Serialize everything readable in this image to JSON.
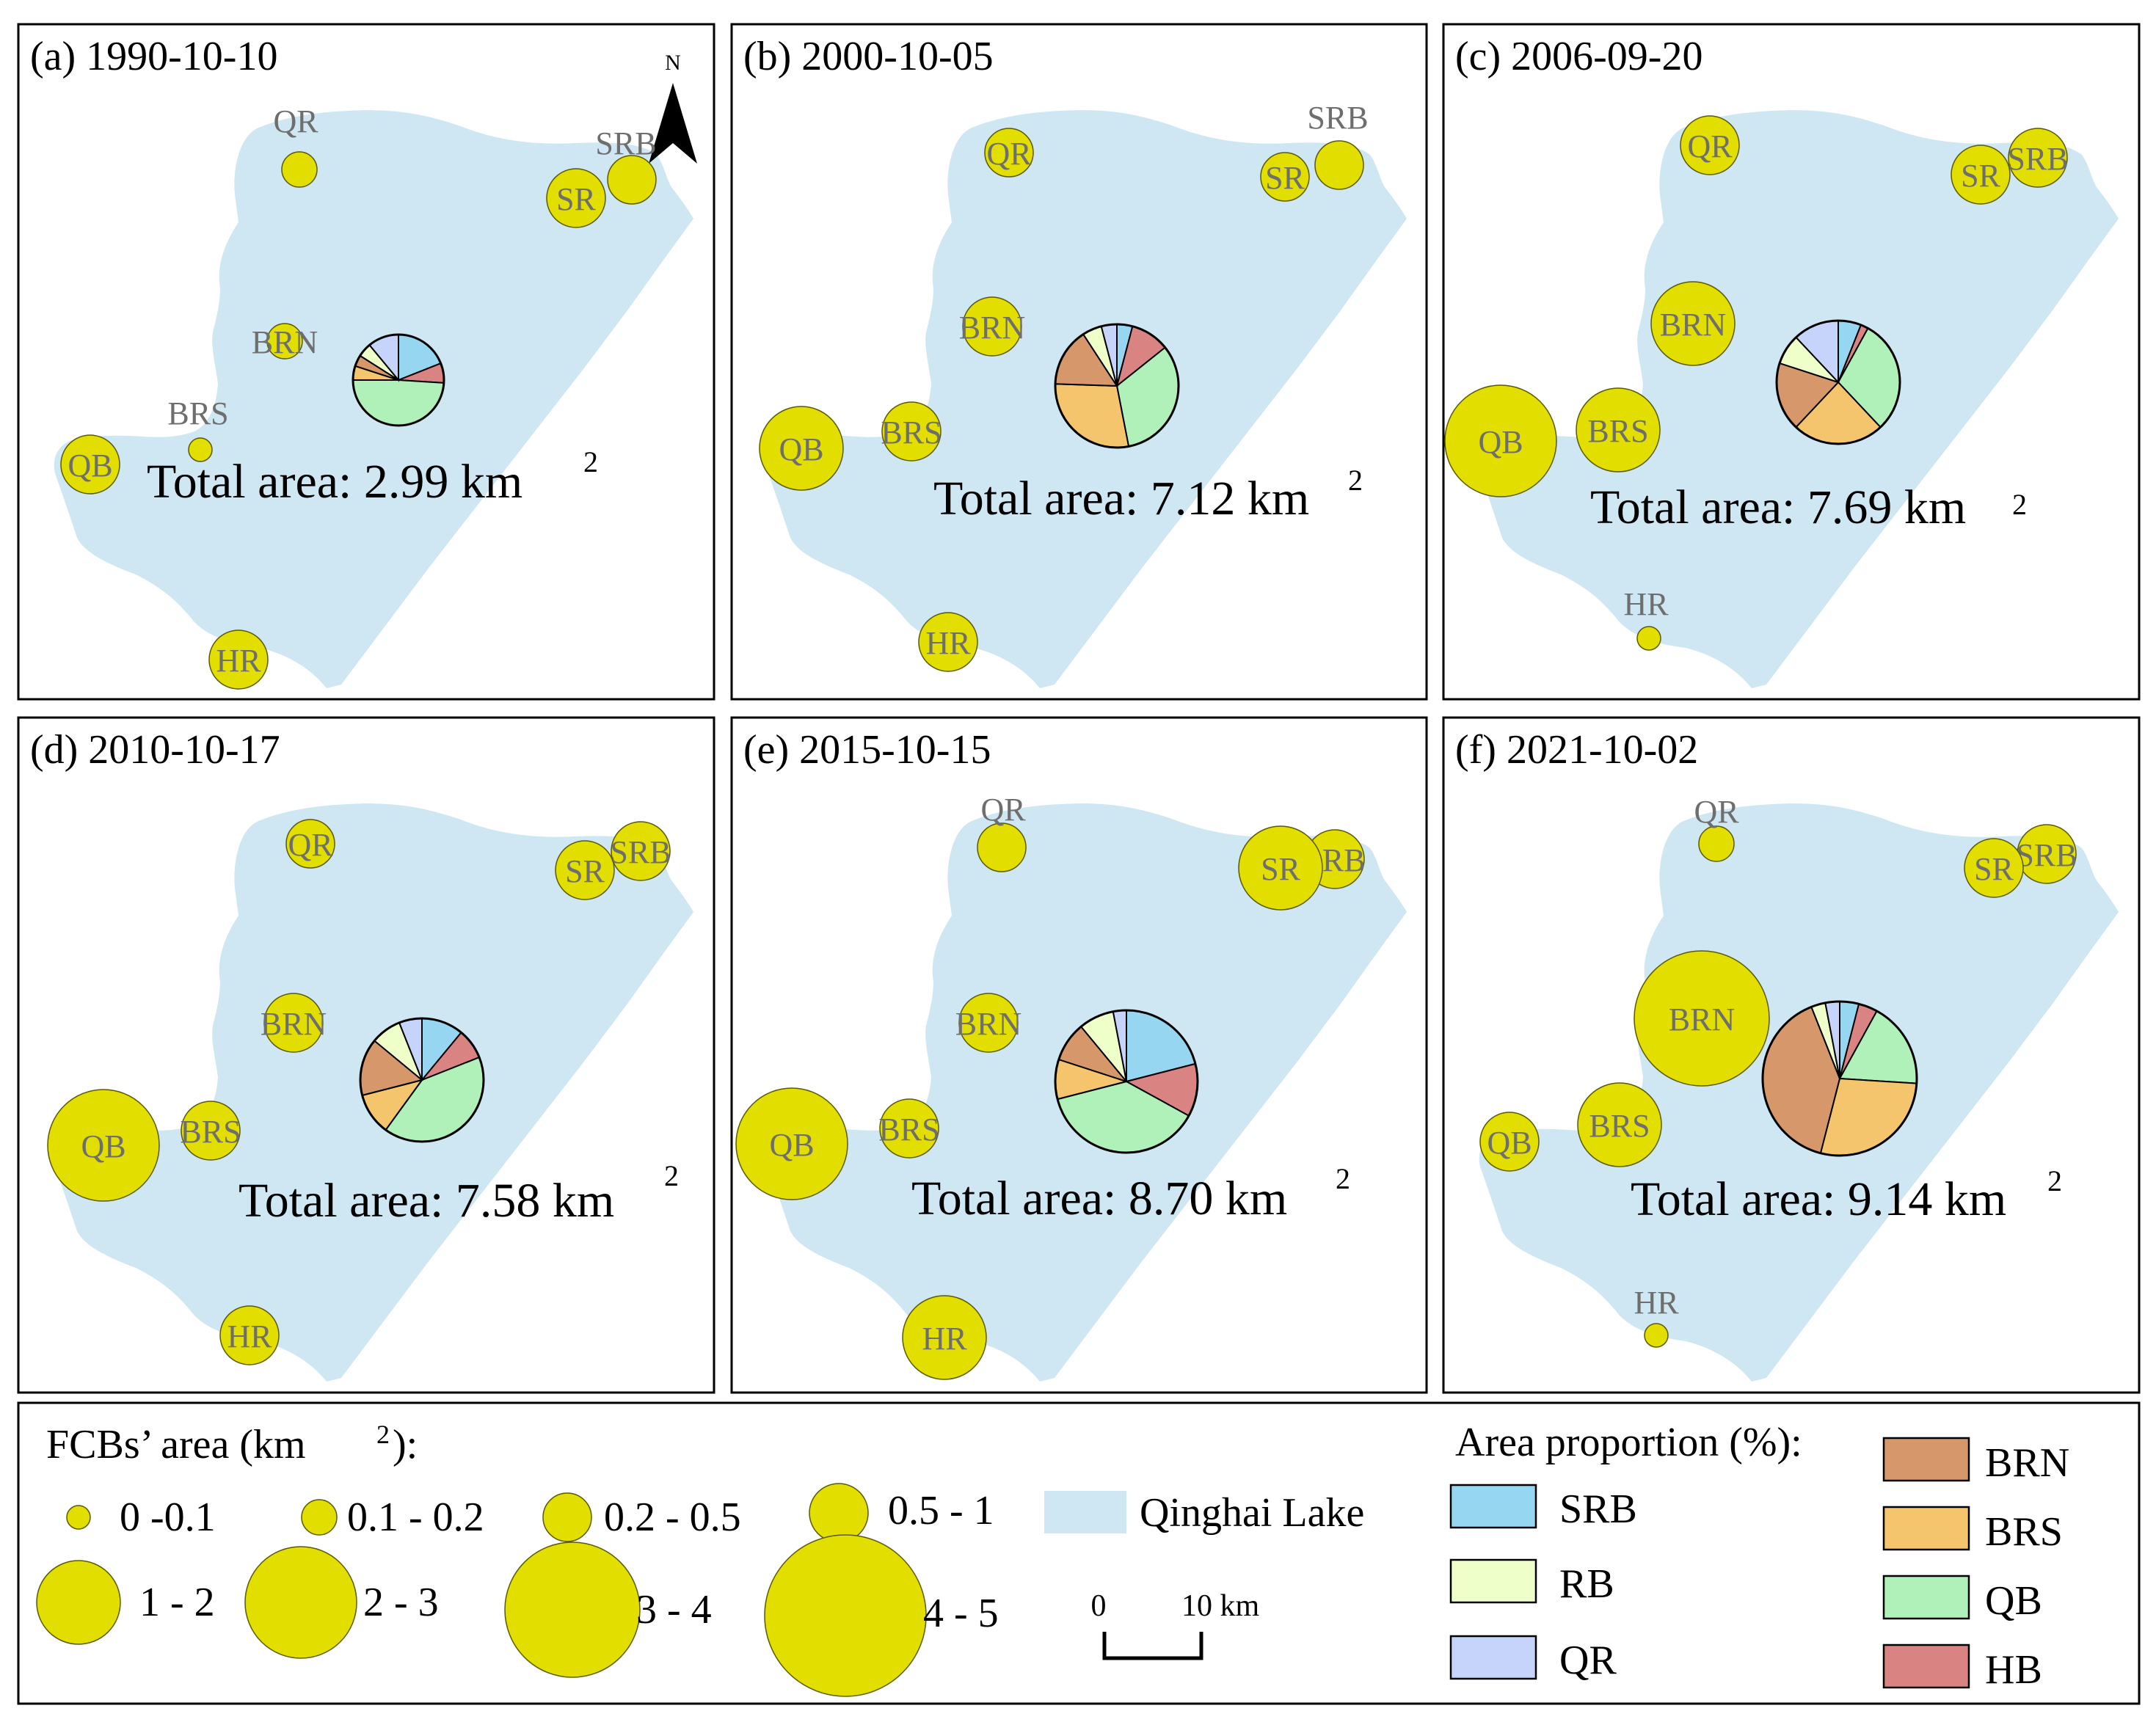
{
  "colors": {
    "lake": "#cfe6f3",
    "bubble": "#e1de00",
    "bubble_stroke": "#5a5a00",
    "label": "#6e6e6e",
    "SRB": "#96d6f1",
    "RB": "#efffc9",
    "QR": "#c6d3fb",
    "BRN": "#d6976b",
    "BRS": "#f5c56d",
    "QB": "#b0f0b9",
    "HB": "#d98383"
  },
  "panels": [
    {
      "id": "a",
      "title": "(a) 1990-10-10",
      "total_label": "Total area: 2.99 km",
      "sup": "2",
      "show_north": true,
      "north_label": "N",
      "bubbles": [
        {
          "label": "QR",
          "area_class": "0.1 - 0.2",
          "text_inside": false
        },
        {
          "label": "SRB",
          "area_class": "0.2 - 0.5",
          "text_inside": false
        },
        {
          "label": "SR",
          "area_class": "0.5 - 1",
          "text_inside": true
        },
        {
          "label": "BRN",
          "area_class": "0.1 - 0.2",
          "text_inside": true
        },
        {
          "label": "BRS",
          "area_class": "0 -0.1",
          "text_inside": false
        },
        {
          "label": "QB",
          "area_class": "0.5 - 1",
          "text_inside": true
        },
        {
          "label": "HR",
          "area_class": "0.5 - 1",
          "text_inside": true
        }
      ],
      "pie": [
        {
          "cls": "SRB",
          "pct": 19
        },
        {
          "cls": "HB",
          "pct": 7
        },
        {
          "cls": "QB",
          "pct": 49
        },
        {
          "cls": "BRS",
          "pct": 5
        },
        {
          "cls": "BRN",
          "pct": 4
        },
        {
          "cls": "RB",
          "pct": 5
        },
        {
          "cls": "QR",
          "pct": 11
        }
      ]
    },
    {
      "id": "b",
      "title": "(b) 2000-10-05",
      "total_label": "Total area: 7.12 km",
      "sup": "2",
      "show_north": false,
      "bubbles": [
        {
          "label": "QR",
          "area_class": "0.2 - 0.5",
          "text_inside": true
        },
        {
          "label": "SRB",
          "area_class": "0.2 - 0.5",
          "text_inside": false
        },
        {
          "label": "SR",
          "area_class": "0.2 - 0.5",
          "text_inside": true
        },
        {
          "label": "BRN",
          "area_class": "0.5 - 1",
          "text_inside": true
        },
        {
          "label": "BRS",
          "area_class": "0.5 - 1",
          "text_inside": true
        },
        {
          "label": "QB",
          "area_class": "1 - 2",
          "text_inside": true
        },
        {
          "label": "HR",
          "area_class": "0.5 - 1",
          "text_inside": true
        }
      ],
      "pie": [
        {
          "cls": "SRB",
          "pct": 4
        },
        {
          "cls": "HB",
          "pct": 10
        },
        {
          "cls": "QB",
          "pct": 32
        },
        {
          "cls": "BRS",
          "pct": 28
        },
        {
          "cls": "BRN",
          "pct": 15
        },
        {
          "cls": "RB",
          "pct": 5
        },
        {
          "cls": "QR",
          "pct": 4
        }
      ]
    },
    {
      "id": "c",
      "title": "(c) 2006-09-20",
      "total_label": "Total area: 7.69 km",
      "sup": "2",
      "show_north": false,
      "bubbles": [
        {
          "label": "QR",
          "area_class": "0.5 - 1",
          "text_inside": true
        },
        {
          "label": "SRB",
          "area_class": "0.5 - 1",
          "text_inside": true
        },
        {
          "label": "SR",
          "area_class": "0.5 - 1",
          "text_inside": true
        },
        {
          "label": "BRN",
          "area_class": "1 - 2",
          "text_inside": true
        },
        {
          "label": "BRS",
          "area_class": "1 - 2",
          "text_inside": true
        },
        {
          "label": "QB",
          "area_class": "2 - 3",
          "text_inside": true
        },
        {
          "label": "HR",
          "area_class": "0 -0.1",
          "text_inside": false
        }
      ],
      "pie": [
        {
          "cls": "SRB",
          "pct": 6
        },
        {
          "cls": "HB",
          "pct": 2
        },
        {
          "cls": "QB",
          "pct": 30
        },
        {
          "cls": "BRS",
          "pct": 24
        },
        {
          "cls": "BRN",
          "pct": 18
        },
        {
          "cls": "RB",
          "pct": 8
        },
        {
          "cls": "QR",
          "pct": 12
        }
      ]
    },
    {
      "id": "d",
      "title": "(d) 2010-10-17",
      "total_label": "Total area: 7.58 km",
      "sup": "2",
      "show_north": false,
      "bubbles": [
        {
          "label": "QR",
          "area_class": "0.2 - 0.5",
          "text_inside": true
        },
        {
          "label": "SRB",
          "area_class": "0.5 - 1",
          "text_inside": true
        },
        {
          "label": "SR",
          "area_class": "0.5 - 1",
          "text_inside": true
        },
        {
          "label": "BRN",
          "area_class": "0.5 - 1",
          "text_inside": true
        },
        {
          "label": "BRS",
          "area_class": "0.5 - 1",
          "text_inside": true
        },
        {
          "label": "QB",
          "area_class": "2 - 3",
          "text_inside": true
        },
        {
          "label": "HR",
          "area_class": "0.5 - 1",
          "text_inside": true
        }
      ],
      "pie": [
        {
          "cls": "SRB",
          "pct": 11
        },
        {
          "cls": "HB",
          "pct": 8
        },
        {
          "cls": "QB",
          "pct": 41
        },
        {
          "cls": "BRS",
          "pct": 11
        },
        {
          "cls": "BRN",
          "pct": 15
        },
        {
          "cls": "RB",
          "pct": 8
        },
        {
          "cls": "QR",
          "pct": 6
        }
      ]
    },
    {
      "id": "e",
      "title": "(e) 2015-10-15",
      "total_label": "Total area: 8.70 km",
      "sup": "2",
      "show_north": false,
      "bubbles": [
        {
          "label": "QR",
          "area_class": "0.2 - 0.5",
          "text_inside": false
        },
        {
          "label": "SRB",
          "area_class": "0.5 - 1",
          "text_inside": true
        },
        {
          "label": "SR",
          "area_class": "1 - 2",
          "text_inside": true
        },
        {
          "label": "BRN",
          "area_class": "0.5 - 1",
          "text_inside": true
        },
        {
          "label": "BRS",
          "area_class": "0.5 - 1",
          "text_inside": true
        },
        {
          "label": "QB",
          "area_class": "2 - 3",
          "text_inside": true
        },
        {
          "label": "HR",
          "area_class": "1 - 2",
          "text_inside": true
        }
      ],
      "pie": [
        {
          "cls": "SRB",
          "pct": 21
        },
        {
          "cls": "HB",
          "pct": 12
        },
        {
          "cls": "QB",
          "pct": 38
        },
        {
          "cls": "BRS",
          "pct": 9
        },
        {
          "cls": "BRN",
          "pct": 9
        },
        {
          "cls": "RB",
          "pct": 8
        },
        {
          "cls": "QR",
          "pct": 3
        }
      ]
    },
    {
      "id": "f",
      "title": "(f) 2021-10-02",
      "total_label": "Total area: 9.14 km",
      "sup": "2",
      "show_north": false,
      "bubbles": [
        {
          "label": "QR",
          "area_class": "0.1 - 0.2",
          "text_inside": false
        },
        {
          "label": "SRB",
          "area_class": "0.5 - 1",
          "text_inside": true
        },
        {
          "label": "SR",
          "area_class": "0.5 - 1",
          "text_inside": true
        },
        {
          "label": "BRN",
          "area_class": "3 - 4",
          "text_inside": true
        },
        {
          "label": "BRS",
          "area_class": "1 - 2",
          "text_inside": true
        },
        {
          "label": "QB",
          "area_class": "0.5 - 1",
          "text_inside": true
        },
        {
          "label": "HR",
          "area_class": "0 -0.1",
          "text_inside": false
        }
      ],
      "pie": [
        {
          "cls": "SRB",
          "pct": 4
        },
        {
          "cls": "HB",
          "pct": 4
        },
        {
          "cls": "QB",
          "pct": 18
        },
        {
          "cls": "BRS",
          "pct": 28
        },
        {
          "cls": "BRN",
          "pct": 40
        },
        {
          "cls": "RB",
          "pct": 3
        },
        {
          "cls": "QR",
          "pct": 3
        }
      ]
    }
  ],
  "legend": {
    "size_title": "FCBs’ area (km",
    "size_title_sup": "2",
    "size_title_end": "):",
    "size_classes": [
      "0 -0.1",
      "0.1 - 0.2",
      "0.2 - 0.5",
      "0.5 - 1",
      "1 - 2",
      "2 - 3",
      "3 - 4",
      "4 - 5"
    ],
    "lake_label": "Qinghai Lake",
    "scale_zero": "0",
    "scale_end": "10 km",
    "proportion_title": "Area proportion (%):",
    "proportion_classes": [
      "SRB",
      "RB",
      "QR",
      "BRN",
      "BRS",
      "QB",
      "HB"
    ]
  }
}
